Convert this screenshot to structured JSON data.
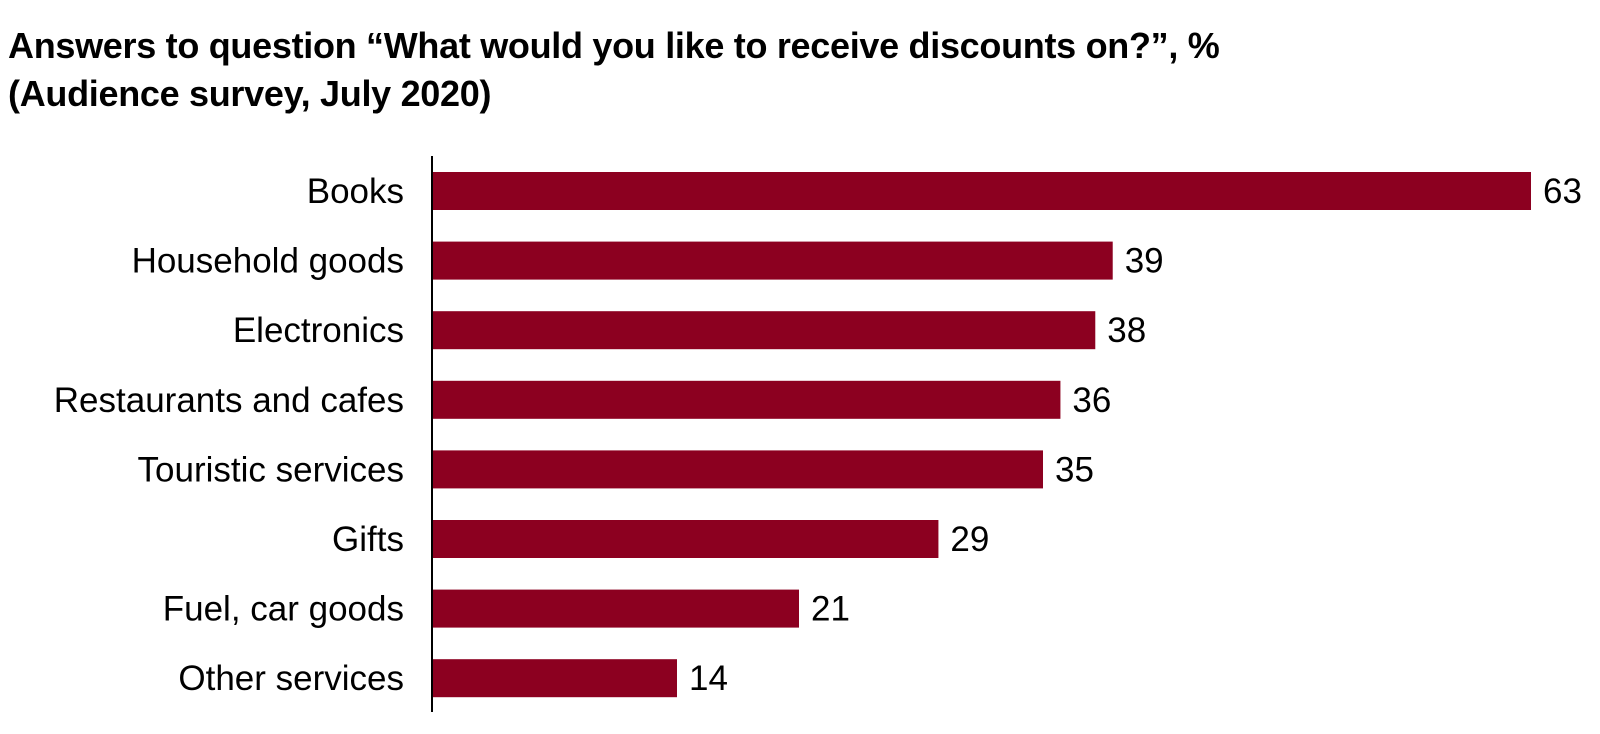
{
  "chart_data": {
    "type": "bar",
    "orientation": "horizontal",
    "title": "Answers to question “What would you like to receive discounts on?”, %",
    "subtitle": "(Audience survey, July 2020)",
    "categories": [
      "Books",
      "Household goods",
      "Electronics",
      "Restaurants and cafes",
      "Touristic services",
      "Gifts",
      "Fuel, car goods",
      "Other services"
    ],
    "values": [
      63,
      39,
      38,
      36,
      35,
      29,
      21,
      14
    ],
    "data_labels": true,
    "xlabel": "",
    "ylabel": "",
    "xlim": [
      0,
      63
    ],
    "grid": false,
    "legend": "none",
    "bar_color": "#8c0020",
    "axis_color": "#000000"
  }
}
